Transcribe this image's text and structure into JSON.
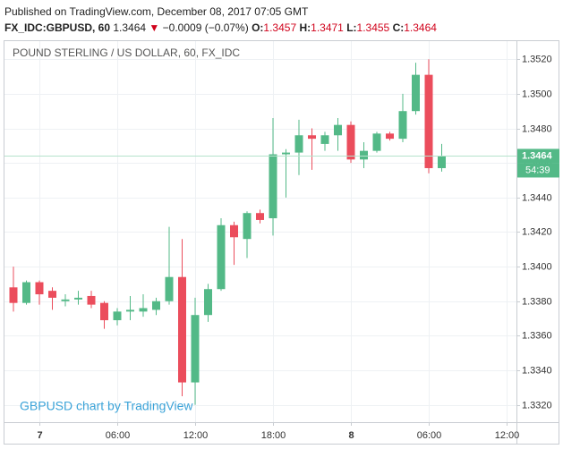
{
  "header": {
    "published": "Published on TradingView.com, December 08, 2017 07:05 GMT",
    "symbol": "FX_IDC:GBPUSD, 60",
    "last": "1.3464",
    "change": "−0.0009 (−0.07%)",
    "ohlc": [
      {
        "label": "O:",
        "value": "1.3457"
      },
      {
        "label": "H:",
        "value": "1.3471"
      },
      {
        "label": "L:",
        "value": "1.3455"
      },
      {
        "label": "C:",
        "value": "1.3464"
      }
    ]
  },
  "chart_data": {
    "type": "candlestick",
    "title": "POUND STERLING / US DOLLAR, 60, FX_IDC",
    "watermark": "GBPUSD chart by TradingView",
    "categories": [
      null,
      null,
      "7",
      null,
      null,
      null,
      null,
      null,
      "06:00",
      null,
      null,
      null,
      null,
      null,
      "12:00",
      null,
      null,
      null,
      null,
      null,
      "18:00",
      null,
      null,
      null,
      null,
      null,
      "8",
      null,
      null,
      null,
      null,
      null,
      "06:00",
      null,
      null,
      null,
      null,
      null,
      "12:00"
    ],
    "open": [
      1.3388,
      1.3379,
      1.3391,
      1.3386,
      1.338,
      1.3381,
      1.3383,
      1.3379,
      1.3369,
      1.3374,
      1.3374,
      1.3375,
      1.338,
      1.3394,
      1.3333,
      1.3372,
      1.3387,
      1.3424,
      1.3416,
      1.3431,
      1.3428,
      1.3465,
      1.3466,
      1.3476,
      1.3471,
      1.3476,
      1.3482,
      1.3462,
      1.3467,
      1.3477,
      1.3474,
      1.349,
      1.3511,
      1.3457,
      null,
      null,
      null,
      null,
      null
    ],
    "high": [
      1.34,
      1.3392,
      1.3392,
      1.3388,
      1.3384,
      1.3386,
      1.3386,
      1.338,
      1.3376,
      1.3383,
      1.3384,
      1.3382,
      1.3423,
      1.3416,
      1.3382,
      1.339,
      1.3428,
      1.3426,
      1.3432,
      1.3433,
      1.3486,
      1.3468,
      1.3485,
      1.348,
      1.3478,
      1.3486,
      1.3484,
      1.3472,
      1.3478,
      1.3478,
      1.35,
      1.3518,
      1.352,
      1.3471,
      null,
      null,
      null,
      null,
      null
    ],
    "low": [
      1.3374,
      1.3378,
      1.3378,
      1.3375,
      1.3377,
      1.3378,
      1.3376,
      1.3364,
      1.3366,
      1.3369,
      1.3371,
      1.3372,
      1.3378,
      1.3325,
      1.332,
      1.3368,
      1.3386,
      1.3401,
      1.3405,
      1.3425,
      1.3418,
      1.344,
      1.3453,
      1.3456,
      1.3467,
      1.3467,
      1.346,
      1.3457,
      1.3466,
      1.3473,
      1.3472,
      1.3488,
      1.3454,
      1.3455,
      null,
      null,
      null,
      null,
      null
    ],
    "close": [
      1.3379,
      1.3391,
      1.3384,
      1.3382,
      1.3381,
      1.3382,
      1.3378,
      1.3369,
      1.3374,
      1.3375,
      1.3376,
      1.338,
      1.3394,
      1.3333,
      1.3372,
      1.3387,
      1.3424,
      1.3417,
      1.3431,
      1.3427,
      1.3465,
      1.3466,
      1.3476,
      1.3474,
      1.3476,
      1.3482,
      1.3462,
      1.3467,
      1.3477,
      1.3474,
      1.349,
      1.3511,
      1.3457,
      1.3464,
      null,
      null,
      null,
      null,
      null
    ],
    "ylim": [
      1.331,
      1.3531
    ],
    "yticks": [
      {
        "value": 1.332,
        "label": "1.3320"
      },
      {
        "value": 1.334,
        "label": "1.3340"
      },
      {
        "value": 1.336,
        "label": "1.3360"
      },
      {
        "value": 1.338,
        "label": "1.3380"
      },
      {
        "value": 1.34,
        "label": "1.3400"
      },
      {
        "value": 1.342,
        "label": "1.3420"
      },
      {
        "value": 1.344,
        "label": "1.3440"
      },
      {
        "value": 1.346,
        "label": "1.3460"
      },
      {
        "value": 1.348,
        "label": "1.3480"
      },
      {
        "value": 1.35,
        "label": "1.3500"
      },
      {
        "value": 1.352,
        "label": "1.3520"
      }
    ],
    "colors": {
      "up": "#53b987",
      "down": "#eb4d5c"
    },
    "grid": true,
    "last_price": {
      "value": 1.3464,
      "countdown": "54:39"
    }
  }
}
